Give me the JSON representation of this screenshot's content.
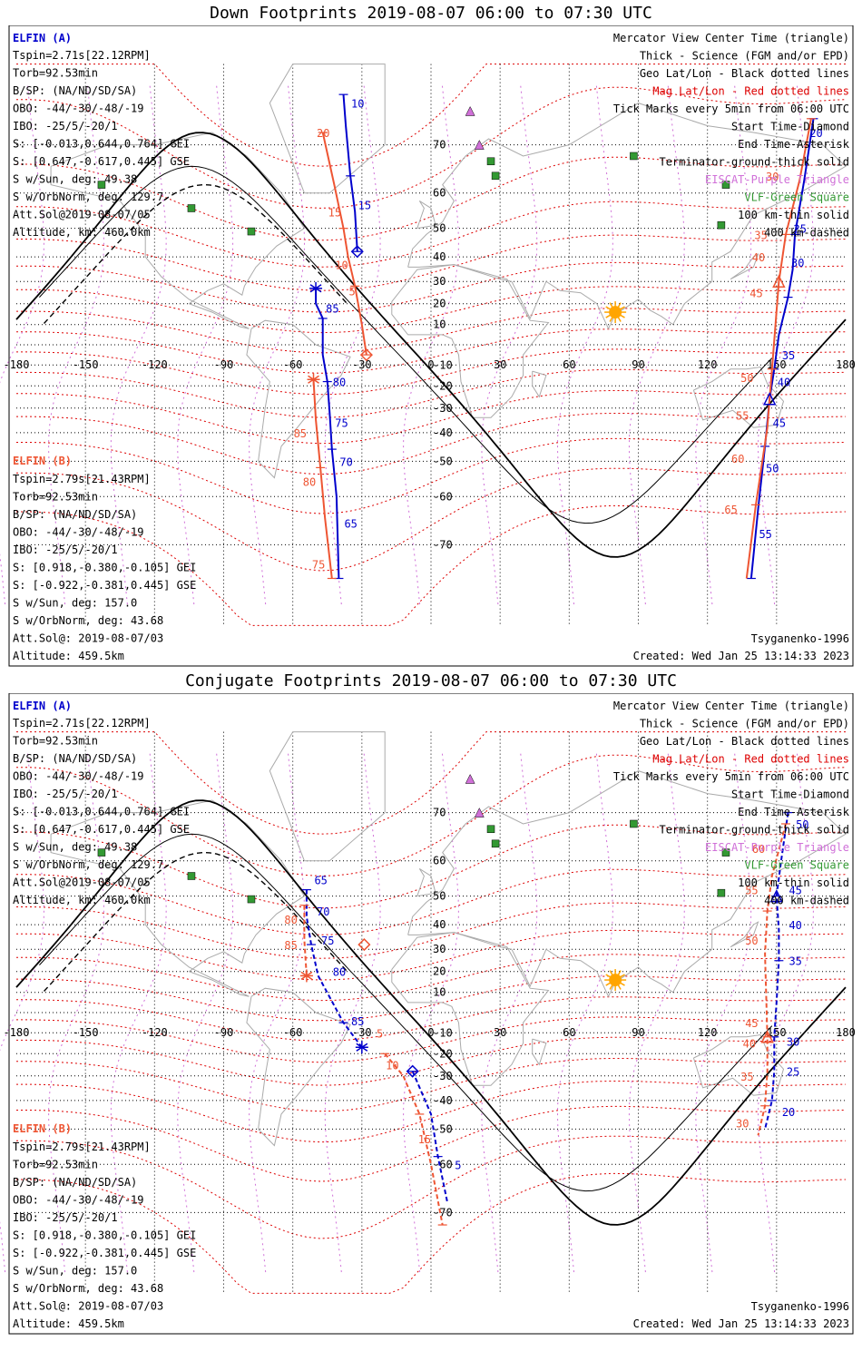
{
  "colors": {
    "elfin_a": "#0000cc",
    "elfin_b": "#ee5533",
    "geo_grid": "#000000",
    "mag_grid": "#dd0000",
    "eiscat": "#d070d8",
    "vlf": "#339933",
    "sun": "#ffa500"
  },
  "shared": {
    "elfin_a_header": "ELFIN (A)",
    "elfin_a_info": [
      "Tspin=2.71s[22.12RPM]",
      "Torb=92.53min",
      "B/SP: (NA/ND/SD/SA)",
      "OBO: -44/-30/-48/-19",
      "IBO: -25/5/-20/1",
      "S: [-0.013,0.644,0.764] GEI",
      "S: [0.647,-0.617,0.445] GSE",
      "S w/Sun, deg: 49.38",
      "S w/OrbNorm, deg: 129.7",
      "Att.Sol@2019-08-07/05",
      "Altitude, km: 460.0km"
    ],
    "elfin_b_header": "ELFIN (B)",
    "elfin_b_info": [
      "Tspin=2.79s[21.43RPM]",
      "Torb=92.53min",
      "B/SP: (NA/ND/SD/SA)",
      "OBO: -44/-30/-48/-19",
      "IBO: -25/5/-20/1",
      "S: [0.918,-0.380,-0.105] GEI",
      "S: [-0.922,-0.381,0.445] GSE",
      "S w/Sun, deg: 157.0",
      "S w/OrbNorm, deg: 43.68",
      "Att.Sol@: 2019-08-07/03",
      "Altitude: 459.5km"
    ],
    "legend": [
      "Mercator View Center Time (triangle)",
      "Thick - Science (FGM and/or EPD)",
      "Geo Lat/Lon - Black dotted lines",
      "Mag Lat/Lon - Red dotted lines",
      "Tick Marks every 5min from 06:00 UTC",
      "Start Time-Diamond",
      "End Time-Asterisk",
      "Terminator-ground-thick solid",
      "EISCAT-Purple Triangle",
      "VLF-Green Square",
      "100 km-thin solid",
      "400 km-dashed"
    ],
    "model": "Tsyganenko-1996",
    "created": "Created: Wed Jan 25 13:14:33 2023",
    "lon_ticks": [
      "-180",
      "-150",
      "-120",
      "-90",
      "-60",
      "-30",
      "0",
      "30",
      "60",
      "90",
      "120",
      "150",
      "180"
    ],
    "lat_ticks": [
      "70",
      "60",
      "50",
      "40",
      "30",
      "20",
      "10",
      "-10",
      "-20",
      "-30",
      "-40",
      "-50",
      "-60",
      "-70"
    ]
  },
  "panels": [
    {
      "title": "Down Footprints 2019-08-07 06:00 to 07:30 UTC",
      "traces": {
        "a_west": [
          [
            -38,
            77
          ],
          [
            -37,
            73
          ],
          [
            -35,
            64
          ],
          [
            -33,
            55
          ],
          [
            -32,
            42
          ]
        ],
        "a_west_tail": [
          [
            -50,
            27
          ],
          [
            -50,
            20
          ],
          [
            -47,
            13
          ],
          [
            -47,
            -5
          ],
          [
            -45,
            -18
          ],
          [
            -44,
            -32
          ],
          [
            -43,
            -46
          ],
          [
            -41,
            -60
          ],
          [
            -40,
            -75
          ]
        ],
        "b_west": [
          [
            -47,
            72
          ],
          [
            -42,
            62
          ],
          [
            -38,
            50
          ],
          [
            -36,
            40
          ],
          [
            -33,
            28
          ],
          [
            -30,
            10
          ],
          [
            -28,
            -5
          ]
        ],
        "b_west_tail": [
          [
            -51,
            -17
          ],
          [
            -50,
            -35
          ],
          [
            -48,
            -52
          ],
          [
            -46,
            -65
          ],
          [
            -43,
            -75
          ]
        ],
        "a_east": [
          [
            166,
            74
          ],
          [
            162,
            63
          ],
          [
            158,
            48
          ],
          [
            157,
            35
          ],
          [
            155,
            23
          ],
          [
            151,
            5
          ],
          [
            149,
            -12
          ],
          [
            147,
            -26
          ],
          [
            145,
            -45
          ],
          [
            142,
            -63
          ],
          [
            139,
            -75
          ]
        ],
        "b_east": [
          [
            165,
            74
          ],
          [
            160,
            63
          ],
          [
            154,
            48
          ],
          [
            151,
            30
          ],
          [
            148,
            -12
          ],
          [
            146,
            -38
          ],
          [
            141,
            -62
          ],
          [
            137,
            -75
          ]
        ]
      },
      "labels": [
        {
          "t": "10",
          "lon": -37,
          "lat": 76,
          "c": "a"
        },
        {
          "t": "15",
          "lon": -34,
          "lat": 57,
          "c": "a"
        },
        {
          "t": "85",
          "lon": -48,
          "lat": 18,
          "c": "a"
        },
        {
          "t": "80",
          "lon": -45,
          "lat": -18,
          "c": "a"
        },
        {
          "t": "75",
          "lon": -44,
          "lat": -36,
          "c": "a"
        },
        {
          "t": "70",
          "lon": -42,
          "lat": -50,
          "c": "a"
        },
        {
          "t": "65",
          "lon": -40,
          "lat": -66,
          "c": "a"
        },
        {
          "t": "20",
          "lon": -52,
          "lat": 72,
          "c": "b"
        },
        {
          "t": "15",
          "lon": -47,
          "lat": 55,
          "c": "b"
        },
        {
          "t": "10",
          "lon": -44,
          "lat": 37,
          "c": "b"
        },
        {
          "t": "5",
          "lon": -38,
          "lat": 26,
          "c": "b"
        },
        {
          "t": "85",
          "lon": -62,
          "lat": -40,
          "c": "b"
        },
        {
          "t": "80",
          "lon": -58,
          "lat": -56,
          "c": "b"
        },
        {
          "t": "75",
          "lon": -54,
          "lat": -73,
          "c": "b"
        },
        {
          "t": "20",
          "lon": 162,
          "lat": 72,
          "c": "a"
        },
        {
          "t": "25",
          "lon": 155,
          "lat": 50,
          "c": "a"
        },
        {
          "t": "30",
          "lon": 154,
          "lat": 38,
          "c": "a"
        },
        {
          "t": "35",
          "lon": 150,
          "lat": -5,
          "c": "a"
        },
        {
          "t": "40",
          "lon": 148,
          "lat": -18,
          "c": "a"
        },
        {
          "t": "45",
          "lon": 146,
          "lat": -36,
          "c": "a"
        },
        {
          "t": "50",
          "lon": 143,
          "lat": -52,
          "c": "a"
        },
        {
          "t": "55",
          "lon": 140,
          "lat": -68,
          "c": "a"
        },
        {
          "t": "30",
          "lon": 143,
          "lat": 64,
          "c": "b"
        },
        {
          "t": "35",
          "lon": 138,
          "lat": 48,
          "c": "b"
        },
        {
          "t": "40",
          "lon": 137,
          "lat": 40,
          "c": "b"
        },
        {
          "t": "45",
          "lon": 136,
          "lat": 25,
          "c": "b"
        },
        {
          "t": "50",
          "lon": 132,
          "lat": -16,
          "c": "b"
        },
        {
          "t": "55",
          "lon": 130,
          "lat": -33,
          "c": "b"
        },
        {
          "t": "60",
          "lon": 128,
          "lat": -49,
          "c": "b"
        },
        {
          "t": "65",
          "lon": 125,
          "lat": -63,
          "c": "b"
        }
      ]
    },
    {
      "title": "Conjugate Footprints 2019-08-07 06:00 to 07:30 UTC",
      "traces": {
        "a_west": [
          [
            -54,
            52
          ],
          [
            -54,
            43
          ],
          [
            -52,
            32
          ],
          [
            -49,
            18
          ],
          [
            -38,
            -5
          ],
          [
            -30,
            -17
          ]
        ],
        "b_west": [
          [
            -55,
            47
          ],
          [
            -55,
            34
          ],
          [
            -54,
            18
          ]
        ],
        "a_mid": [
          [
            -8,
            -28
          ],
          [
            0,
            -45
          ],
          [
            3,
            -58
          ],
          [
            7,
            -68
          ]
        ],
        "b_mid": [
          [
            -20,
            -20
          ],
          [
            -12,
            -30
          ],
          [
            -5,
            -45
          ],
          [
            0,
            -60
          ],
          [
            5,
            -72
          ]
        ],
        "a_east": [
          [
            155,
            70
          ],
          [
            152,
            60
          ],
          [
            150,
            50
          ],
          [
            151,
            38
          ],
          [
            151,
            25
          ],
          [
            150,
            5
          ],
          [
            149,
            -12
          ],
          [
            149,
            -28
          ],
          [
            148,
            -40
          ],
          [
            145,
            -50
          ]
        ],
        "b_east": [
          [
            154,
            68
          ],
          [
            148,
            56
          ],
          [
            146,
            45
          ],
          [
            145,
            28
          ],
          [
            146,
            -12
          ],
          [
            146,
            -28
          ],
          [
            145,
            -42
          ],
          [
            142,
            -52
          ]
        ]
      },
      "labels": [
        {
          "t": "65",
          "lon": -53,
          "lat": 55,
          "c": "a"
        },
        {
          "t": "70",
          "lon": -52,
          "lat": 45,
          "c": "a"
        },
        {
          "t": "75",
          "lon": -50,
          "lat": 34,
          "c": "a"
        },
        {
          "t": "80",
          "lon": -45,
          "lat": 20,
          "c": "a"
        },
        {
          "t": "85",
          "lon": -37,
          "lat": -4,
          "c": "a"
        },
        {
          "t": "5",
          "lon": 8,
          "lat": -60,
          "c": "a"
        },
        {
          "t": "80",
          "lon": -66,
          "lat": 42,
          "c": "b"
        },
        {
          "t": "85",
          "lon": -66,
          "lat": 32,
          "c": "b"
        },
        {
          "t": "5",
          "lon": -26,
          "lat": -10,
          "c": "b"
        },
        {
          "t": "10",
          "lon": -22,
          "lat": -25,
          "c": "b"
        },
        {
          "t": "15",
          "lon": -8,
          "lat": -53,
          "c": "b"
        },
        {
          "t": "50",
          "lon": 156,
          "lat": 68,
          "c": "a"
        },
        {
          "t": "45",
          "lon": 153,
          "lat": 52,
          "c": "a"
        },
        {
          "t": "40",
          "lon": 153,
          "lat": 40,
          "c": "a"
        },
        {
          "t": "35",
          "lon": 153,
          "lat": 25,
          "c": "a"
        },
        {
          "t": "30",
          "lon": 152,
          "lat": -14,
          "c": "a"
        },
        {
          "t": "25",
          "lon": 152,
          "lat": -28,
          "c": "a"
        },
        {
          "t": "20",
          "lon": 150,
          "lat": -44,
          "c": "a"
        },
        {
          "t": "60",
          "lon": 137,
          "lat": 63,
          "c": "b"
        },
        {
          "t": "55",
          "lon": 134,
          "lat": 52,
          "c": "b"
        },
        {
          "t": "50",
          "lon": 134,
          "lat": 34,
          "c": "b"
        },
        {
          "t": "45",
          "lon": 134,
          "lat": -5,
          "c": "b"
        },
        {
          "t": "40",
          "lon": 133,
          "lat": -15,
          "c": "b"
        },
        {
          "t": "35",
          "lon": 132,
          "lat": -30,
          "c": "b"
        },
        {
          "t": "30",
          "lon": 130,
          "lat": -48,
          "c": "b"
        }
      ]
    }
  ],
  "eiscat_sites": [
    [
      17,
      75
    ],
    [
      21,
      70
    ]
  ],
  "vlf_sites": [
    [
      -143,
      62
    ],
    [
      -104,
      56
    ],
    [
      -78,
      49
    ],
    [
      26,
      67
    ],
    [
      28,
      64
    ],
    [
      88,
      68
    ],
    [
      128,
      62
    ],
    [
      126,
      51
    ]
  ],
  "sun": [
    80,
    16
  ]
}
